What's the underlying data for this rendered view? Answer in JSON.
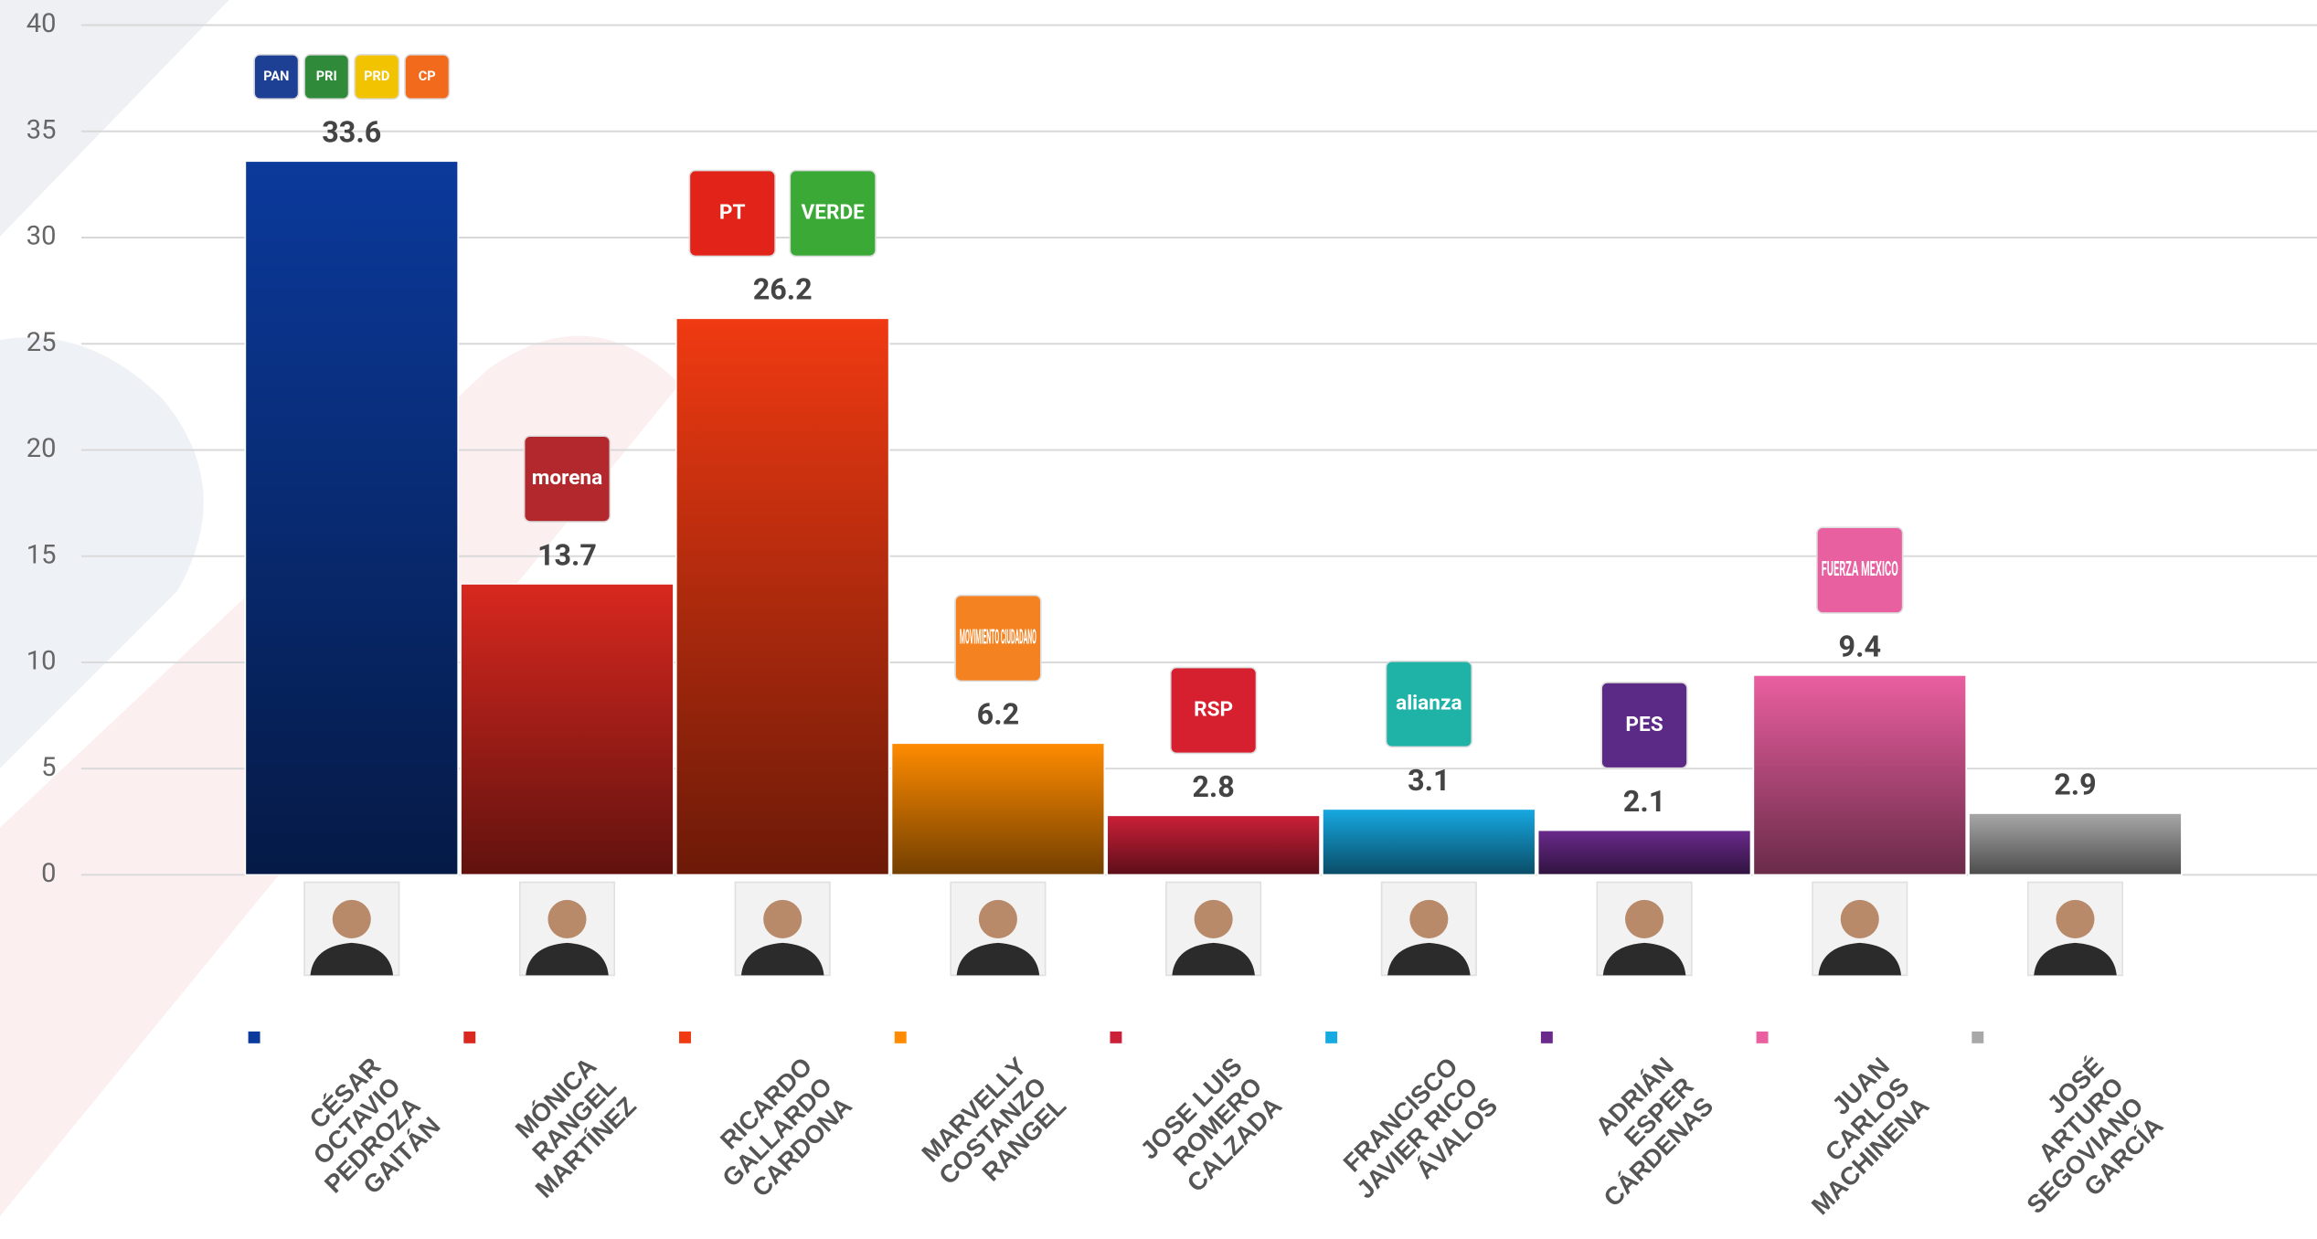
{
  "chart_data": {
    "type": "bar",
    "categories": [
      "CÉSAR\nOCTAVIO\nPEDROZA\nGAITÁN",
      "MÓNICA\nRANGEL\nMARTÍNEZ",
      "RICARDO\nGALLARDO\nCARDONA",
      "MARVELLY\nCOSTANZO\nRANGEL",
      "JOSE LUIS\nROMERO\nCALZADA",
      "FRANCISCO\nJAVIER RICO\nÁVALOS",
      "ADRIÁN\nESPER\nCÁRDENAS",
      "JUAN\nCARLOS\nMACHINENA",
      "JOSÉ\nARTURO\nSEGOVIANO\nGARCÍA"
    ],
    "values": [
      33.6,
      13.7,
      26.2,
      6.2,
      2.8,
      3.1,
      2.1,
      9.4,
      2.9
    ],
    "colors": [
      "#0b3a9c",
      "#d8281f",
      "#f03a12",
      "#ff8c00",
      "#cc2038",
      "#16a9e2",
      "#6a2a8c",
      "#ea5fa0",
      "#a8a8a8"
    ],
    "party_logos": [
      [
        {
          "label": "PAN",
          "color": "#1d3f94"
        },
        {
          "label": "PRI",
          "color": "#2f8a3a"
        },
        {
          "label": "PRD",
          "color": "#f2c300"
        },
        {
          "label": "CP",
          "color": "#f26a1b"
        }
      ],
      [
        {
          "label": "morena",
          "color": "#b3282d"
        }
      ],
      [
        {
          "label": "PT",
          "color": "#e2231a"
        },
        {
          "label": "VERDE",
          "color": "#3aa935"
        }
      ],
      [
        {
          "label": "MOVIMIENTO CIUDADANO",
          "color": "#f58220"
        }
      ],
      [
        {
          "label": "RSP",
          "color": "#d6202f"
        }
      ],
      [
        {
          "label": "alianza",
          "color": "#1fb3a8"
        }
      ],
      [
        {
          "label": "PES",
          "color": "#5b2a86"
        }
      ],
      [
        {
          "label": "FUERZA MEXICO",
          "color": "#e8609f"
        }
      ],
      []
    ],
    "ylim": [
      0,
      40
    ],
    "yticks": [
      0,
      5,
      10,
      15,
      20,
      25,
      30,
      35,
      40
    ],
    "grid": true
  }
}
